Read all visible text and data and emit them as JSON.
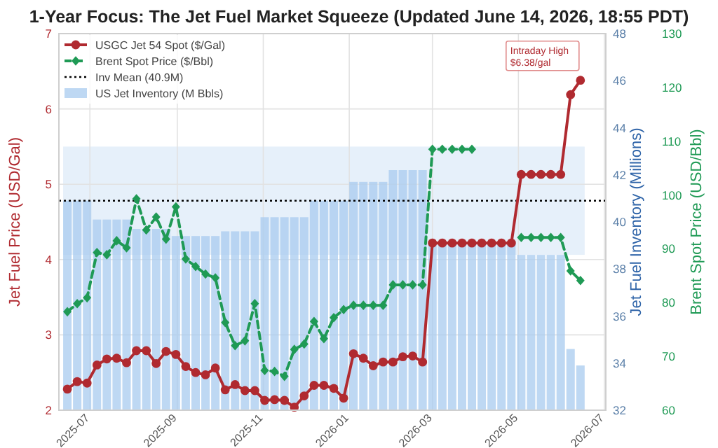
{
  "chart_data": {
    "type": "line",
    "title": "1-Year Focus: The Jet Fuel Market Squeeze (Updated June 14, 2026, 18:55 PDT)",
    "ylabel": "Jet Fuel Price (USD/Gal)",
    "y2label": "Jet Fuel Inventory (Millions)",
    "y3label": "Brent Spot Price (USD/Bbl)",
    "x": [
      "2025-06-15",
      "2025-06-22",
      "2025-06-29",
      "2025-07-06",
      "2025-07-13",
      "2025-07-20",
      "2025-07-27",
      "2025-08-03",
      "2025-08-10",
      "2025-08-17",
      "2025-08-24",
      "2025-08-31",
      "2025-09-07",
      "2025-09-14",
      "2025-09-21",
      "2025-09-28",
      "2025-10-05",
      "2025-10-12",
      "2025-10-19",
      "2025-10-26",
      "2025-11-02",
      "2025-11-09",
      "2025-11-16",
      "2025-11-23",
      "2025-11-30",
      "2025-12-07",
      "2025-12-14",
      "2025-12-21",
      "2025-12-28",
      "2026-01-04",
      "2026-01-11",
      "2026-01-18",
      "2026-01-25",
      "2026-02-01",
      "2026-02-08",
      "2026-02-15",
      "2026-02-22",
      "2026-03-01",
      "2026-03-08",
      "2026-03-15",
      "2026-03-22",
      "2026-03-29",
      "2026-04-05",
      "2026-04-12",
      "2026-04-19",
      "2026-04-26",
      "2026-05-03",
      "2026-05-10",
      "2026-05-17",
      "2026-05-24",
      "2026-05-31",
      "2026-06-07",
      "2026-06-14"
    ],
    "series": [
      {
        "name": "US Jet Inventory (M Bbls)",
        "type": "bar",
        "axis": "y2",
        "color": "#a8cbef",
        "values": [
          40.9,
          40.9,
          40.9,
          40.1,
          40.1,
          40.1,
          40.1,
          39.7,
          39.7,
          39.7,
          39.7,
          39.4,
          39.4,
          39.4,
          39.4,
          39.4,
          39.6,
          39.6,
          39.6,
          39.6,
          40.2,
          40.2,
          40.2,
          40.2,
          40.2,
          40.9,
          40.9,
          40.9,
          40.9,
          41.7,
          41.7,
          41.7,
          41.7,
          42.2,
          42.2,
          42.2,
          42.2,
          39.1,
          39.1,
          39.1,
          39.1,
          39.1,
          39.1,
          39.1,
          39.1,
          39.1,
          38.6,
          38.6,
          38.6,
          38.6,
          38.6,
          34.6,
          33.9
        ]
      },
      {
        "name": "USGC Jet 54 Spot ($/Gal)",
        "axis": "y",
        "color": "#b02a30",
        "marker": "circle",
        "line_style": "solid",
        "values": [
          2.28,
          2.38,
          2.36,
          2.6,
          2.68,
          2.69,
          2.63,
          2.79,
          2.79,
          2.62,
          2.78,
          2.74,
          2.58,
          2.5,
          2.47,
          2.56,
          2.27,
          2.34,
          2.26,
          2.26,
          2.13,
          2.14,
          2.13,
          2.04,
          2.19,
          2.33,
          2.33,
          2.29,
          2.16,
          2.75,
          2.69,
          2.59,
          2.64,
          2.64,
          2.71,
          2.72,
          2.64,
          4.22,
          4.22,
          4.22,
          4.22,
          4.22,
          4.22,
          4.22,
          4.22,
          4.22,
          5.13,
          5.13,
          5.13,
          5.13,
          5.13,
          6.19,
          6.38
        ]
      },
      {
        "name": "Brent Spot Price ($/Bbl)",
        "axis": "y3",
        "color": "#1f9a55",
        "marker": "diamond",
        "line_style": "dashed",
        "values": [
          78.3,
          79.8,
          80.9,
          89.3,
          88.9,
          91.5,
          90.2,
          99.3,
          93.5,
          95.9,
          91.8,
          97.8,
          88.1,
          86.7,
          85.3,
          84.6,
          76.3,
          72.0,
          72.9,
          79.8,
          67.4,
          67.2,
          66.3,
          71.3,
          72.3,
          76.5,
          73.3,
          77.2,
          78.7,
          79.5,
          79.5,
          79.5,
          79.5,
          83.3,
          83.3,
          83.3,
          83.3,
          108.5,
          108.5,
          108.5,
          108.5,
          108.5,
          null,
          null,
          null,
          null,
          92.1,
          92.1,
          92.1,
          92.1,
          92.1,
          85.9,
          84.1
        ]
      }
    ],
    "ref_lines": [
      {
        "axis": "y2",
        "value": 40.9,
        "label": "Inv Mean (40.9M)",
        "color": "#000000",
        "line_style": "dotted"
      }
    ],
    "bands": [
      {
        "axis": "y2",
        "from": 38.6,
        "to": 43.2,
        "color": "#e6f0fa"
      }
    ],
    "annotations": [
      {
        "text": "Intraday High\n$6.38/gal",
        "x": "2026-06-14",
        "y": 6.38
      }
    ],
    "xlim": [
      "2025-06-09",
      "2026-07-02"
    ],
    "xticks": [
      {
        "value": "2025-07-01",
        "label": "2025-07"
      },
      {
        "value": "2025-09-01",
        "label": "2025-09"
      },
      {
        "value": "2025-11-01",
        "label": "2025-11"
      },
      {
        "value": "2026-01-01",
        "label": "2026-01"
      },
      {
        "value": "2026-03-01",
        "label": "2026-03"
      },
      {
        "value": "2026-05-01",
        "label": "2026-05"
      },
      {
        "value": "2026-07-01",
        "label": "2026-07"
      }
    ],
    "ylim": [
      2,
      7
    ],
    "yticks": [
      2,
      3,
      4,
      5,
      6,
      7
    ],
    "y2lim": [
      32,
      48
    ],
    "y2ticks": [
      32,
      34,
      36,
      38,
      40,
      42,
      44,
      46,
      48
    ],
    "y3lim": [
      60,
      130
    ],
    "y3ticks": [
      60,
      70,
      80,
      90,
      100,
      110,
      120,
      130
    ],
    "grid": true,
    "legend": "top left"
  }
}
